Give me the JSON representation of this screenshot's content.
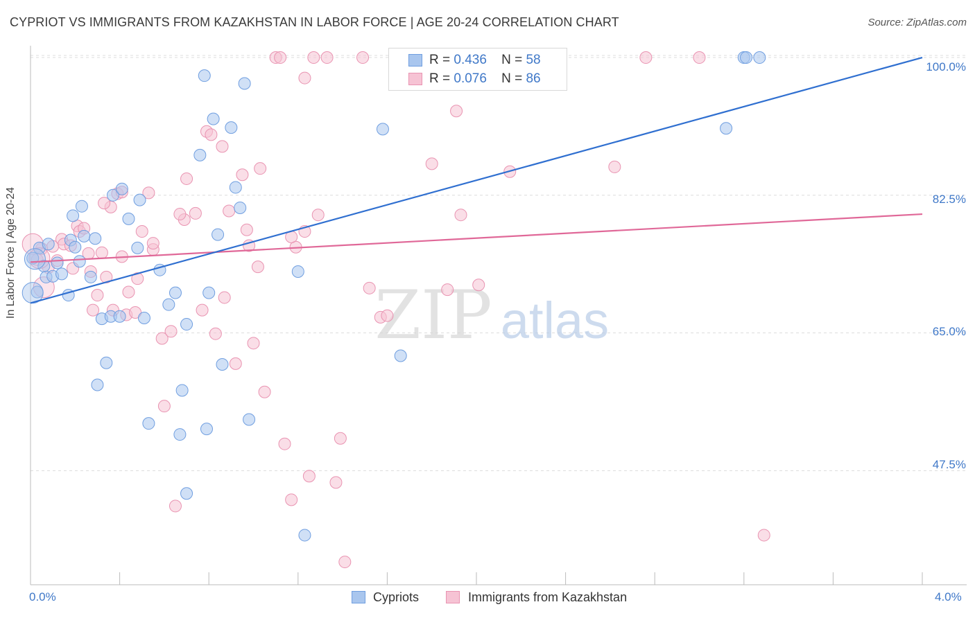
{
  "title": "CYPRIOT VS IMMIGRANTS FROM KAZAKHSTAN IN LABOR FORCE | AGE 20-24 CORRELATION CHART",
  "source": "Source: ZipAtlas.com",
  "watermark": {
    "zip": "ZIP",
    "atlas": "atlas"
  },
  "colors": {
    "blue_fill": "#a9c6ee",
    "blue_stroke": "#6f9ee0",
    "blue_line": "#2f6fd0",
    "pink_fill": "#f6c3d4",
    "pink_stroke": "#e993b1",
    "pink_line": "#e06898",
    "tick_text": "#3f78c8",
    "grid": "#dcdcdc"
  },
  "stats": {
    "r_label": "R =",
    "n_label": "N =",
    "rows": [
      {
        "r": "0.436",
        "n": "58"
      },
      {
        "r": "0.076",
        "n": "86"
      }
    ]
  },
  "chart_data": {
    "type": "scatter",
    "title": "CYPRIOT VS IMMIGRANTS FROM KAZAKHSTAN IN LABOR FORCE | AGE 20-24 CORRELATION CHART",
    "xlabel": "",
    "ylabel": "In Labor Force | Age 20-24",
    "xlim": [
      0,
      4.0
    ],
    "ylim": [
      33,
      101.5
    ],
    "x_tick_labels": [
      "0.0%",
      "4.0%"
    ],
    "y_ticks": [
      47.5,
      65.0,
      82.5,
      100.0
    ],
    "y_tick_labels": [
      "47.5%",
      "65.0%",
      "82.5%",
      "100.0%"
    ],
    "grid": true,
    "legend_position": "bottom",
    "series": [
      {
        "name": "Cypriots",
        "trend": {
          "x0": 0.0,
          "y0": 68.8,
          "x1": 4.0,
          "y1": 100.0
        },
        "points": [
          [
            0.01,
            74.5
          ],
          [
            0.03,
            70.2
          ],
          [
            0.04,
            75.8
          ],
          [
            0.06,
            73.5
          ],
          [
            0.07,
            72.1
          ],
          [
            0.08,
            76.3
          ],
          [
            0.1,
            72.2
          ],
          [
            0.12,
            73.9
          ],
          [
            0.14,
            72.5
          ],
          [
            0.17,
            69.8
          ],
          [
            0.18,
            76.8
          ],
          [
            0.19,
            79.9
          ],
          [
            0.2,
            75.9
          ],
          [
            0.22,
            74.1
          ],
          [
            0.23,
            81.1
          ],
          [
            0.24,
            77.3
          ],
          [
            0.27,
            72.1
          ],
          [
            0.29,
            77.0
          ],
          [
            0.3,
            58.4
          ],
          [
            0.32,
            66.8
          ],
          [
            0.34,
            61.2
          ],
          [
            0.36,
            67.1
          ],
          [
            0.37,
            82.5
          ],
          [
            0.4,
            67.1
          ],
          [
            0.41,
            83.3
          ],
          [
            0.44,
            79.5
          ],
          [
            0.48,
            75.8
          ],
          [
            0.49,
            81.9
          ],
          [
            0.51,
            66.9
          ],
          [
            0.53,
            53.5
          ],
          [
            0.58,
            73.0
          ],
          [
            0.62,
            68.6
          ],
          [
            0.65,
            70.1
          ],
          [
            0.67,
            52.1
          ],
          [
            0.68,
            57.7
          ],
          [
            0.7,
            66.1
          ],
          [
            0.76,
            87.6
          ],
          [
            0.78,
            97.7
          ],
          [
            0.79,
            52.8
          ],
          [
            0.8,
            70.1
          ],
          [
            0.82,
            92.2
          ],
          [
            0.84,
            77.5
          ],
          [
            0.86,
            61.0
          ],
          [
            0.9,
            91.1
          ],
          [
            0.92,
            83.5
          ],
          [
            0.94,
            80.9
          ],
          [
            0.96,
            96.7
          ],
          [
            0.98,
            54.0
          ],
          [
            1.2,
            72.8
          ],
          [
            1.23,
            39.3
          ],
          [
            1.58,
            90.9
          ],
          [
            1.66,
            62.1
          ],
          [
            1.73,
            100.0
          ],
          [
            0.7,
            44.6
          ],
          [
            3.12,
            91.0
          ],
          [
            3.2,
            100.0
          ],
          [
            3.21,
            100.0
          ],
          [
            3.27,
            100.0
          ]
        ],
        "large_points": [
          [
            0.01,
            70.1
          ],
          [
            0.02,
            74.4
          ]
        ]
      },
      {
        "name": "Immigrants from Kazakhstan",
        "trend": {
          "x0": 0.0,
          "y0": 74.0,
          "x1": 4.0,
          "y1": 80.1
        },
        "points": [
          [
            0.03,
            74.3
          ],
          [
            0.05,
            75.7
          ],
          [
            0.08,
            73.3
          ],
          [
            0.1,
            76.0
          ],
          [
            0.12,
            74.2
          ],
          [
            0.14,
            76.9
          ],
          [
            0.15,
            76.3
          ],
          [
            0.18,
            76.1
          ],
          [
            0.19,
            73.2
          ],
          [
            0.21,
            78.6
          ],
          [
            0.22,
            77.9
          ],
          [
            0.24,
            78.3
          ],
          [
            0.26,
            75.1
          ],
          [
            0.27,
            72.8
          ],
          [
            0.28,
            67.9
          ],
          [
            0.3,
            69.8
          ],
          [
            0.32,
            75.2
          ],
          [
            0.34,
            72.1
          ],
          [
            0.36,
            81.0
          ],
          [
            0.37,
            67.9
          ],
          [
            0.39,
            82.7
          ],
          [
            0.41,
            74.7
          ],
          [
            0.43,
            67.3
          ],
          [
            0.44,
            70.2
          ],
          [
            0.47,
            67.6
          ],
          [
            0.48,
            71.9
          ],
          [
            0.5,
            77.9
          ],
          [
            0.53,
            82.8
          ],
          [
            0.55,
            75.6
          ],
          [
            0.59,
            64.3
          ],
          [
            0.6,
            55.7
          ],
          [
            0.63,
            65.2
          ],
          [
            0.65,
            43.0
          ],
          [
            0.69,
            79.4
          ],
          [
            0.7,
            84.6
          ],
          [
            0.74,
            80.2
          ],
          [
            0.77,
            67.9
          ],
          [
            0.79,
            90.6
          ],
          [
            0.81,
            90.2
          ],
          [
            0.83,
            64.9
          ],
          [
            0.86,
            88.7
          ],
          [
            0.87,
            69.5
          ],
          [
            0.89,
            80.5
          ],
          [
            0.92,
            61.1
          ],
          [
            0.95,
            85.1
          ],
          [
            0.97,
            78.1
          ],
          [
            0.98,
            76.1
          ],
          [
            1.0,
            63.7
          ],
          [
            1.02,
            73.4
          ],
          [
            1.03,
            85.9
          ],
          [
            1.05,
            57.5
          ],
          [
            1.1,
            100.0
          ],
          [
            1.12,
            100.0
          ],
          [
            1.14,
            50.9
          ],
          [
            1.17,
            43.8
          ],
          [
            1.19,
            75.9
          ],
          [
            1.23,
            97.4
          ],
          [
            1.25,
            46.8
          ],
          [
            1.27,
            100.0
          ],
          [
            1.29,
            80.0
          ],
          [
            1.33,
            100.0
          ],
          [
            1.37,
            46.0
          ],
          [
            1.39,
            51.6
          ],
          [
            1.41,
            35.9
          ],
          [
            1.49,
            100.0
          ],
          [
            1.52,
            70.7
          ],
          [
            1.57,
            67.0
          ],
          [
            1.6,
            67.2
          ],
          [
            1.71,
            100.0
          ],
          [
            1.76,
            100.0
          ],
          [
            1.8,
            86.5
          ],
          [
            1.87,
            70.5
          ],
          [
            1.91,
            93.2
          ],
          [
            1.93,
            80.0
          ],
          [
            2.01,
            71.1
          ],
          [
            2.15,
            85.5
          ],
          [
            2.62,
            86.1
          ],
          [
            2.76,
            100.0
          ],
          [
            3.0,
            100.0
          ],
          [
            3.29,
            39.3
          ],
          [
            0.67,
            80.1
          ],
          [
            0.55,
            76.4
          ],
          [
            1.23,
            77.9
          ],
          [
            1.17,
            77.2
          ],
          [
            0.33,
            81.5
          ],
          [
            0.41,
            82.9
          ]
        ],
        "large_points": [
          [
            0.01,
            76.3
          ],
          [
            0.04,
            74.5
          ],
          [
            0.06,
            70.8
          ]
        ]
      }
    ]
  },
  "legend": [
    {
      "label": "Cypriots"
    },
    {
      "label": "Immigrants from Kazakhstan"
    }
  ]
}
